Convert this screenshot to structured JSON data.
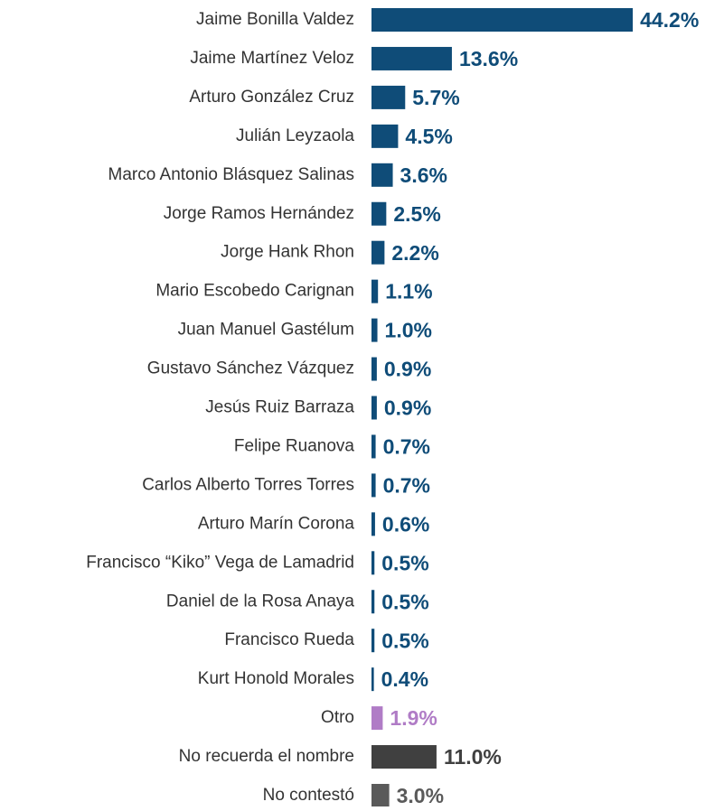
{
  "chart_data": {
    "type": "bar",
    "orientation": "horizontal",
    "categories": [
      "Jaime Bonilla Valdez",
      "Jaime Martínez Veloz",
      "Arturo González Cruz",
      "Julián Leyzaola",
      "Marco Antonio Blásquez Salinas",
      "Jorge Ramos Hernández",
      "Jorge Hank Rhon",
      "Mario Escobedo Carignan",
      "Juan Manuel Gastélum",
      "Gustavo Sánchez Vázquez",
      "Jesús Ruiz Barraza",
      "Felipe Ruanova",
      "Carlos Alberto Torres Torres",
      "Arturo Marín Corona",
      "Francisco “Kiko” Vega de Lamadrid",
      "Daniel de la Rosa Anaya",
      "Francisco Rueda",
      "Kurt Honold Morales",
      "Otro",
      "No recuerda el nombre",
      "No contestó"
    ],
    "values": [
      44.2,
      13.6,
      5.7,
      4.5,
      3.6,
      2.5,
      2.2,
      1.1,
      1.0,
      0.9,
      0.9,
      0.7,
      0.7,
      0.6,
      0.5,
      0.5,
      0.5,
      0.4,
      1.9,
      11.0,
      3.0
    ],
    "value_labels": [
      "44.2%",
      "13.6%",
      "5.7%",
      "4.5%",
      "3.6%",
      "2.5%",
      "2.2%",
      "1.1%",
      "1.0%",
      "0.9%",
      "0.9%",
      "0.7%",
      "0.7%",
      "0.6%",
      "0.5%",
      "0.5%",
      "0.5%",
      "0.4%",
      "1.9%",
      "11.0%",
      "3.0%"
    ],
    "colors": [
      "#0f4c78",
      "#0f4c78",
      "#0f4c78",
      "#0f4c78",
      "#0f4c78",
      "#0f4c78",
      "#0f4c78",
      "#0f4c78",
      "#0f4c78",
      "#0f4c78",
      "#0f4c78",
      "#0f4c78",
      "#0f4c78",
      "#0f4c78",
      "#0f4c78",
      "#0f4c78",
      "#0f4c78",
      "#0f4c78",
      "#b07cc6",
      "#404040",
      "#5a5a5a"
    ]
  }
}
